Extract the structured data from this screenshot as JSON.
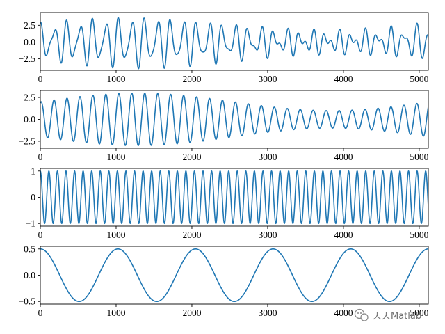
{
  "colors": {
    "line": "#1f77b4",
    "axes": "#000000",
    "watermark": "#6f6f6f"
  },
  "watermark": {
    "text": "天天Matlab",
    "icon": "wechat-icon"
  },
  "chart_data": [
    {
      "type": "line",
      "title": "",
      "xlabel": "",
      "ylabel": "",
      "xlim": [
        0,
        5120
      ],
      "ylim": [
        -4.2,
        4.4
      ],
      "xticks": [
        0,
        1000,
        2000,
        3000,
        4000,
        5000
      ],
      "xtick_labels": [
        "0",
        "1000",
        "2000",
        "3000",
        "4000",
        "5000"
      ],
      "yticks": [
        -2.5,
        0,
        2.5
      ],
      "ytick_labels": [
        "−2.5",
        "0.0",
        "2.5"
      ],
      "grid": false,
      "series": [
        {
          "components": [
            {
              "kind": "am",
              "base": 2.0,
              "mod_amp": 1.0,
              "mod_period": 5120,
              "mod_phase": 0.0,
              "period": 171,
              "phase": 1.2
            },
            {
              "kind": "sin",
              "amp": 1.0,
              "period": 113,
              "phase": 1.57
            }
          ]
        }
      ]
    },
    {
      "type": "line",
      "title": "",
      "xlabel": "",
      "ylabel": "",
      "xlim": [
        0,
        5120
      ],
      "ylim": [
        -3.3,
        3.3
      ],
      "xticks": [
        0,
        1000,
        2000,
        3000,
        4000,
        5000
      ],
      "xtick_labels": [
        "0",
        "1000",
        "2000",
        "3000",
        "4000",
        "5000"
      ],
      "yticks": [
        -2.5,
        0,
        2.5
      ],
      "ytick_labels": [
        "−2.5",
        "0.0",
        "2.5"
      ],
      "grid": false,
      "series": [
        {
          "components": [
            {
              "kind": "am",
              "base": 2.0,
              "mod_amp": 1.0,
              "mod_period": 5120,
              "mod_phase": 0.0,
              "period": 171,
              "phase": 1.2
            }
          ]
        }
      ]
    },
    {
      "type": "line",
      "title": "",
      "xlabel": "",
      "ylabel": "",
      "xlim": [
        0,
        5120
      ],
      "ylim": [
        -1.1,
        1.1
      ],
      "xticks": [
        0,
        1000,
        2000,
        3000,
        4000,
        5000
      ],
      "xtick_labels": [
        "0",
        "1000",
        "2000",
        "3000",
        "4000",
        "5000"
      ],
      "yticks": [
        -1,
        0,
        1
      ],
      "ytick_labels": [
        "−1",
        "0",
        "1"
      ],
      "grid": false,
      "series": [
        {
          "components": [
            {
              "kind": "sin",
              "amp": 1.0,
              "period": 113,
              "phase": 1.57
            }
          ]
        }
      ]
    },
    {
      "type": "line",
      "title": "",
      "xlabel": "",
      "ylabel": "",
      "xlim": [
        0,
        5120
      ],
      "ylim": [
        -0.55,
        0.55
      ],
      "xticks": [
        0,
        1000,
        2000,
        3000,
        4000,
        5000
      ],
      "xtick_labels": [
        "0",
        "1000",
        "2000",
        "3000",
        "4000",
        "5000"
      ],
      "yticks": [
        -0.5,
        0,
        0.5
      ],
      "ytick_labels": [
        "−0.5",
        "0.0",
        "0.5"
      ],
      "grid": false,
      "series": [
        {
          "components": [
            {
              "kind": "sin",
              "amp": 0.5,
              "period": 1024,
              "phase": 1.57
            }
          ]
        }
      ]
    }
  ]
}
